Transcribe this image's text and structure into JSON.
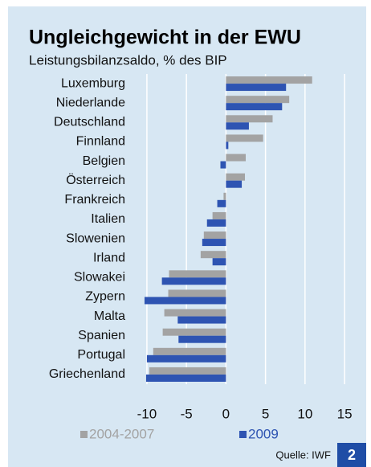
{
  "chart_data": {
    "type": "hbar",
    "title": "Ungleichgewicht in der EWU",
    "subtitle": "Leistungsbilanzsaldo, % des BIP",
    "categories": [
      "Luxemburg",
      "Niederlande",
      "Deutschland",
      "Finnland",
      "Belgien",
      "Österreich",
      "Frankreich",
      "Italien",
      "Slowenien",
      "Irland",
      "Slowakei",
      "Zypern",
      "Malta",
      "Spanien",
      "Portugal",
      "Griechenland"
    ],
    "series": [
      {
        "name": "2004-2007",
        "color": "#a3a3a3",
        "values": [
          10.9,
          8.0,
          5.9,
          4.7,
          2.5,
          2.4,
          -0.3,
          -1.7,
          -2.8,
          -3.2,
          -7.2,
          -7.3,
          -7.8,
          -8.0,
          -9.2,
          -9.7
        ]
      },
      {
        "name": "2009",
        "color": "#2e54b2",
        "values": [
          7.6,
          7.1,
          2.9,
          0.3,
          -0.7,
          2.0,
          -1.1,
          -2.4,
          -3.0,
          -1.7,
          -8.1,
          -10.3,
          -6.1,
          -6.0,
          -10.0,
          -10.1
        ]
      }
    ],
    "xlim": [
      -10.5,
      15.5
    ],
    "xticks": [
      -10,
      -5,
      0,
      5,
      10,
      15
    ],
    "grid": true,
    "source": "Quelle: IWF",
    "badge": "2"
  }
}
